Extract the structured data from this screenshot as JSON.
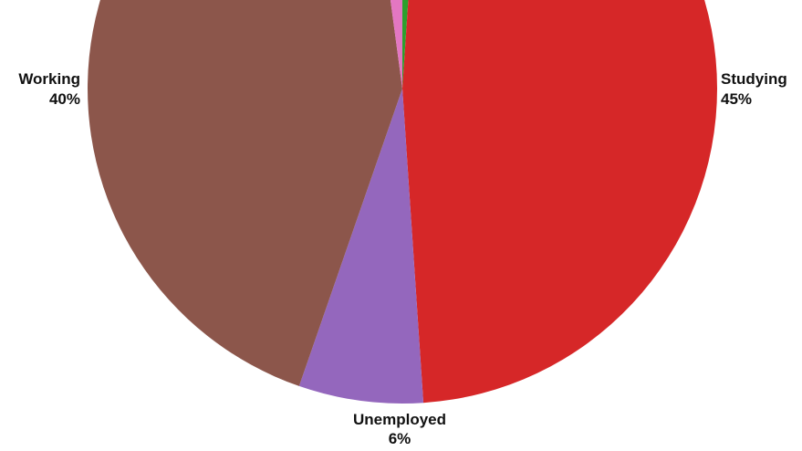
{
  "chart_data": {
    "type": "pie",
    "slices": [
      {
        "label": "",
        "percent": "",
        "value": 1,
        "color": "#2ca02c"
      },
      {
        "label": "Studying",
        "percent": "45%",
        "value": 45,
        "color": "#d62728"
      },
      {
        "label": "Unemployed",
        "percent": "6%",
        "value": 6,
        "color": "#9467bd"
      },
      {
        "label": "Working",
        "percent": "40%",
        "value": 40,
        "color": "#8c564b"
      },
      {
        "label": "",
        "percent": "",
        "value": 2,
        "color": "#e377c2"
      }
    ],
    "start": "top, clockwise",
    "legend": "none (labels placed next to slices)"
  }
}
